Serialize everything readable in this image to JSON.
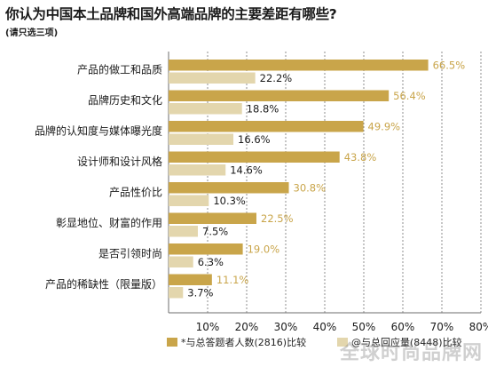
{
  "chart_data": {
    "type": "bar",
    "orientation": "horizontal",
    "title": "你认为中国本土品牌和国外高端品牌的主要差距有哪些?",
    "subtitle": "(请只选三项)",
    "categories": [
      "产品的做工和品质",
      "品牌历史和文化",
      "品牌的认知度与媒体曝光度",
      "设计师和设计风格",
      "产品性价比",
      "彰显地位、财富的作用",
      "是否引领时尚",
      "产品的稀缺性（限量版）"
    ],
    "series": [
      {
        "name": "*与总答题者人数(2816)比较",
        "color": "#c9a54a",
        "values": [
          66.5,
          56.4,
          49.9,
          43.8,
          30.8,
          22.5,
          19.0,
          11.1
        ],
        "value_labels": [
          "66.5%",
          "56.4%",
          "49.9%",
          "43.8%",
          "30.8%",
          "22.5%",
          "19.0%",
          "11.1%"
        ]
      },
      {
        "name": "@与总回应量(8448)比较",
        "color": "#e3d6ad",
        "values": [
          22.2,
          18.8,
          16.6,
          14.6,
          10.3,
          7.5,
          6.3,
          3.7
        ],
        "value_labels": [
          "22.2%",
          "18.8%",
          "16.6%",
          "14.6%",
          "10.3%",
          "7.5%",
          "6.3%",
          "3.7%"
        ]
      }
    ],
    "xlim": [
      0,
      80
    ],
    "xticks": [
      "10%",
      "20%",
      "30%",
      "40%",
      "50%",
      "60%",
      "70%",
      "80%"
    ],
    "grid": true,
    "legend_position": "bottom"
  },
  "watermark": "全球时尚品牌网"
}
